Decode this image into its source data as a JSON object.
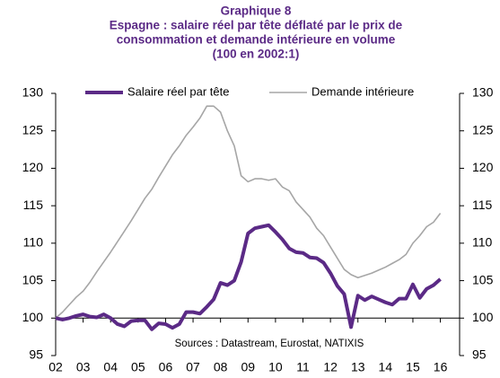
{
  "chart_data": {
    "type": "line",
    "title": "Graphique 8",
    "subtitle": [
      "Espagne : salaire réel par tête déflaté par le prix de",
      "consommation et demande intérieure en volume",
      "(100 en 2002:1)"
    ],
    "annotation": "Sources : Datastream, Eurostat, NATIXIS",
    "x": [
      2002,
      2002.25,
      2002.5,
      2002.75,
      2003,
      2003.25,
      2003.5,
      2003.75,
      2004,
      2004.25,
      2004.5,
      2004.75,
      2005,
      2005.25,
      2005.5,
      2005.75,
      2006,
      2006.25,
      2006.5,
      2006.75,
      2007,
      2007.25,
      2007.5,
      2007.75,
      2008,
      2008.25,
      2008.5,
      2008.75,
      2009,
      2009.25,
      2009.5,
      2009.75,
      2010,
      2010.25,
      2010.5,
      2010.75,
      2011,
      2011.25,
      2011.5,
      2011.75,
      2012,
      2012.25,
      2012.5,
      2012.75,
      2013,
      2013.25,
      2013.5,
      2013.75,
      2014,
      2014.25,
      2014.5,
      2014.75,
      2015,
      2015.25,
      2015.5,
      2015.75,
      2016
    ],
    "series": [
      {
        "name": "Salaire réel par tête",
        "color": "#5b2a86",
        "width": 4,
        "values": [
          100,
          99.8,
          100,
          100.3,
          100.5,
          100.2,
          100.1,
          100.5,
          100,
          99.2,
          98.9,
          99.6,
          99.7,
          99.7,
          98.5,
          99.3,
          99.2,
          98.7,
          99.2,
          100.8,
          100.8,
          100.6,
          101.5,
          102.5,
          104.7,
          104.4,
          105,
          107.5,
          111.3,
          112,
          112.2,
          112.4,
          111.5,
          110.5,
          109.3,
          108.8,
          108.7,
          108.1,
          108,
          107.4,
          106,
          104.3,
          103.2,
          98.8,
          103,
          102.4,
          102.9,
          102.5,
          102.1,
          101.8,
          102.6,
          102.6,
          104.5,
          102.7,
          103.9,
          104.4,
          105.2
        ]
      },
      {
        "name": "Demande intérieure",
        "color": "#a6a6a6",
        "width": 1.6,
        "values": [
          100,
          100.8,
          101.8,
          102.8,
          103.6,
          104.8,
          106.2,
          107.5,
          108.8,
          110.2,
          111.6,
          113,
          114.5,
          116,
          117.2,
          118.8,
          120.3,
          121.8,
          123,
          124.4,
          125.5,
          126.7,
          128.3,
          128.3,
          127.5,
          125,
          123,
          119,
          118.2,
          118.6,
          118.6,
          118.4,
          118.6,
          117.5,
          117,
          115.5,
          114.5,
          113.5,
          112,
          111,
          109.5,
          108,
          106.5,
          105.8,
          105.4,
          105.7,
          106,
          106.4,
          106.8,
          107.3,
          107.8,
          108.5,
          110,
          111,
          112.2,
          112.8,
          114
        ]
      }
    ],
    "xlim": [
      2002,
      2016.7
    ],
    "xticks": [
      {
        "value": 2002,
        "label": "02"
      },
      {
        "value": 2003,
        "label": "03"
      },
      {
        "value": 2004,
        "label": "04"
      },
      {
        "value": 2005,
        "label": "05"
      },
      {
        "value": 2006,
        "label": "06"
      },
      {
        "value": 2007,
        "label": "07"
      },
      {
        "value": 2008,
        "label": "08"
      },
      {
        "value": 2009,
        "label": "09"
      },
      {
        "value": 2010,
        "label": "10"
      },
      {
        "value": 2011,
        "label": "11"
      },
      {
        "value": 2012,
        "label": "12"
      },
      {
        "value": 2013,
        "label": "13"
      },
      {
        "value": 2014,
        "label": "14"
      },
      {
        "value": 2015,
        "label": "15"
      },
      {
        "value": 2016,
        "label": "16"
      }
    ],
    "ylim": [
      95,
      130
    ],
    "yticks": [
      95,
      100,
      105,
      110,
      115,
      120,
      125,
      130
    ],
    "y2lim": [
      95,
      130
    ],
    "y2ticks": [
      95,
      100,
      105,
      110,
      115,
      120,
      125,
      130
    ],
    "xaxis_at": 100,
    "grid": false
  }
}
